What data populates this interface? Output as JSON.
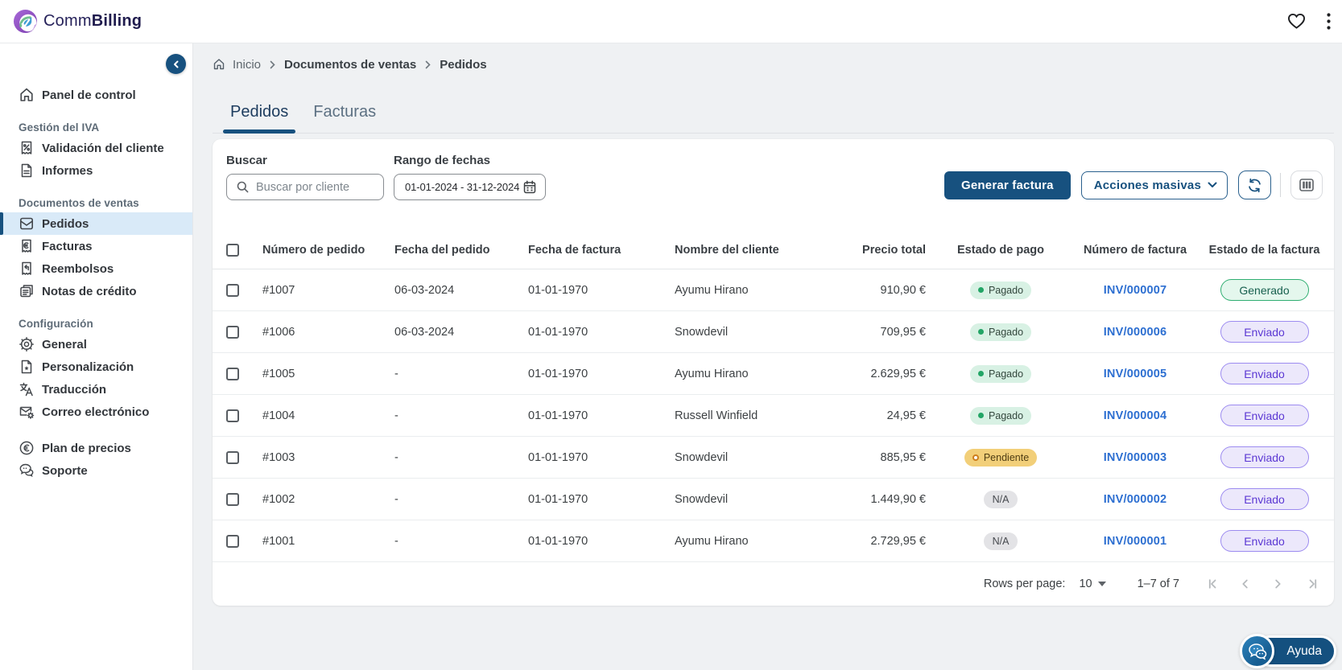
{
  "brand": {
    "name_regular": "Comm",
    "name_bold": "Billing"
  },
  "topbar": {
    "icons": [
      "heart",
      "kebab-menu"
    ]
  },
  "sidebar": {
    "items": [
      {
        "type": "link",
        "icon": "home",
        "label": "Panel de control"
      },
      {
        "type": "section",
        "label": "Gestión del IVA"
      },
      {
        "type": "link",
        "icon": "receipt-percent",
        "label": "Validación del cliente"
      },
      {
        "type": "link",
        "icon": "document",
        "label": "Informes"
      },
      {
        "type": "section",
        "label": "Documentos de ventas"
      },
      {
        "type": "link",
        "icon": "inbox",
        "label": "Pedidos",
        "active": true
      },
      {
        "type": "link",
        "icon": "invoice-euro",
        "label": "Facturas"
      },
      {
        "type": "link",
        "icon": "refund",
        "label": "Reembolsos"
      },
      {
        "type": "link",
        "icon": "credit-note",
        "label": "Notas de crédito"
      },
      {
        "type": "section",
        "label": "Configuración"
      },
      {
        "type": "link",
        "icon": "gear",
        "label": "General"
      },
      {
        "type": "link",
        "icon": "customize",
        "label": "Personalización"
      },
      {
        "type": "link",
        "icon": "translate",
        "label": "Traducción"
      },
      {
        "type": "link",
        "icon": "mail-gear",
        "label": "Correo electrónico"
      },
      {
        "type": "gap"
      },
      {
        "type": "link",
        "icon": "euro-circle",
        "label": "Plan de precios"
      },
      {
        "type": "link",
        "icon": "chat-bubbles",
        "label": "Soporte"
      }
    ]
  },
  "breadcrumb": [
    {
      "label": "Inicio",
      "strong": false
    },
    {
      "label": "Documentos de ventas",
      "strong": true
    },
    {
      "label": "Pedidos",
      "strong": true
    }
  ],
  "tabs": [
    {
      "label": "Pedidos",
      "active": true
    },
    {
      "label": "Facturas",
      "active": false
    }
  ],
  "filters": {
    "search_label": "Buscar",
    "search_placeholder": "Buscar por cliente",
    "date_label": "Rango de fechas",
    "date_value": "01-01-2024 - 31-12-2024",
    "generate_button": "Generar factura",
    "bulk_button": "Acciones masivas"
  },
  "table": {
    "columns": [
      "Número de pedido",
      "Fecha del pedido",
      "Fecha de factura",
      "Nombre del cliente",
      "Precio total",
      "Estado de pago",
      "Número de factura",
      "Estado de la factura"
    ],
    "rows": [
      {
        "order": "#1007",
        "order_date": "06-03-2024",
        "invoice_date": "01-01-1970",
        "client": "Ayumu Hirano",
        "total": "910,90 €",
        "payment": {
          "label": "Pagado",
          "kind": "paid"
        },
        "invoice_number": "INV/000007",
        "status": {
          "label": "Generado",
          "kind": "generated"
        }
      },
      {
        "order": "#1006",
        "order_date": "06-03-2024",
        "invoice_date": "01-01-1970",
        "client": "Snowdevil",
        "total": "709,95 €",
        "payment": {
          "label": "Pagado",
          "kind": "paid"
        },
        "invoice_number": "INV/000006",
        "status": {
          "label": "Enviado",
          "kind": "sent"
        }
      },
      {
        "order": "#1005",
        "order_date": "-",
        "invoice_date": "01-01-1970",
        "client": "Ayumu Hirano",
        "total": "2.629,95 €",
        "payment": {
          "label": "Pagado",
          "kind": "paid"
        },
        "invoice_number": "INV/000005",
        "status": {
          "label": "Enviado",
          "kind": "sent"
        }
      },
      {
        "order": "#1004",
        "order_date": "-",
        "invoice_date": "01-01-1970",
        "client": "Russell Winfield",
        "total": "24,95 €",
        "payment": {
          "label": "Pagado",
          "kind": "paid"
        },
        "invoice_number": "INV/000004",
        "status": {
          "label": "Enviado",
          "kind": "sent"
        }
      },
      {
        "order": "#1003",
        "order_date": "-",
        "invoice_date": "01-01-1970",
        "client": "Snowdevil",
        "total": "885,95 €",
        "payment": {
          "label": "Pendiente",
          "kind": "pending"
        },
        "invoice_number": "INV/000003",
        "status": {
          "label": "Enviado",
          "kind": "sent"
        }
      },
      {
        "order": "#1002",
        "order_date": "-",
        "invoice_date": "01-01-1970",
        "client": "Snowdevil",
        "total": "1.449,90 €",
        "payment": {
          "label": "N/A",
          "kind": "na"
        },
        "invoice_number": "INV/000002",
        "status": {
          "label": "Enviado",
          "kind": "sent"
        }
      },
      {
        "order": "#1001",
        "order_date": "-",
        "invoice_date": "01-01-1970",
        "client": "Ayumu Hirano",
        "total": "2.729,95 €",
        "payment": {
          "label": "N/A",
          "kind": "na"
        },
        "invoice_number": "INV/000001",
        "status": {
          "label": "Enviado",
          "kind": "sent"
        }
      }
    ]
  },
  "pagination": {
    "rows_per_page_label": "Rows per page:",
    "rows_per_page": "10",
    "range": "1–7 of 7"
  },
  "help": {
    "label": "Ayuda"
  },
  "colors": {
    "primary": "#17517f",
    "link": "#2d6fd1",
    "paid_bg": "#d8f1e4",
    "pending_bg": "#f2cf79",
    "na_bg": "#e3e3e6",
    "generated_border": "#2fae71",
    "sent_border": "#9c8bf0",
    "active_item_bg": "#d9eaf8"
  }
}
